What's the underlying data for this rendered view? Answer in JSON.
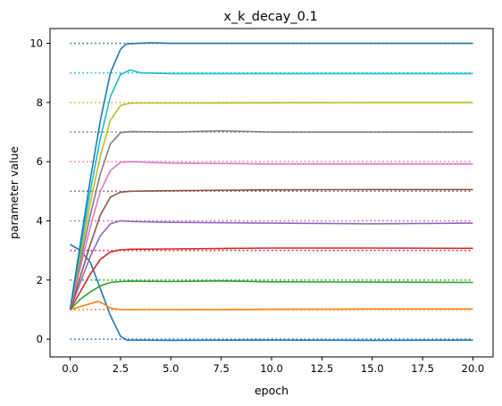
{
  "chart_data": {
    "type": "line",
    "title": "x_k_decay_0.1",
    "xlabel": "epoch",
    "ylabel": "parameter value",
    "xlim": [
      -1.0,
      21.0
    ],
    "ylim": [
      -0.6,
      10.5
    ],
    "xticks": [
      0.0,
      2.5,
      5.0,
      7.5,
      10.0,
      12.5,
      15.0,
      17.5,
      20.0
    ],
    "xtick_labels": [
      "0.0",
      "2.5",
      "5.0",
      "7.5",
      "10.0",
      "12.5",
      "15.0",
      "17.5",
      "20.0"
    ],
    "yticks": [
      0,
      2,
      4,
      6,
      8,
      10
    ],
    "ytick_labels": [
      "0",
      "2",
      "4",
      "6",
      "8",
      "10"
    ],
    "grid": false,
    "legend": "none",
    "series": [
      {
        "color": "#1f77b4",
        "target": 0,
        "points": [
          [
            0,
            3.2
          ],
          [
            0.5,
            3.0
          ],
          [
            1.0,
            2.6
          ],
          [
            1.5,
            1.7
          ],
          [
            2.0,
            0.8
          ],
          [
            2.5,
            0.1
          ],
          [
            2.8,
            -0.03
          ],
          [
            5,
            -0.04
          ],
          [
            10,
            -0.03
          ],
          [
            15,
            -0.04
          ],
          [
            20,
            -0.03
          ]
        ]
      },
      {
        "color": "#ff7f0e",
        "target": 1,
        "points": [
          [
            0,
            1.0
          ],
          [
            0.5,
            1.1
          ],
          [
            1.0,
            1.2
          ],
          [
            1.4,
            1.28
          ],
          [
            1.7,
            1.18
          ],
          [
            2.0,
            1.05
          ],
          [
            2.5,
            1.0
          ],
          [
            5,
            1.0
          ],
          [
            10,
            1.01
          ],
          [
            15,
            1.02
          ],
          [
            20,
            1.02
          ]
        ]
      },
      {
        "color": "#2ca02c",
        "target": 2,
        "points": [
          [
            0,
            1.0
          ],
          [
            0.5,
            1.35
          ],
          [
            1.0,
            1.6
          ],
          [
            1.5,
            1.8
          ],
          [
            2.0,
            1.92
          ],
          [
            2.5,
            1.95
          ],
          [
            3.0,
            1.96
          ],
          [
            5,
            1.95
          ],
          [
            7.5,
            1.97
          ],
          [
            10,
            1.94
          ],
          [
            15,
            1.93
          ],
          [
            20,
            1.92
          ]
        ]
      },
      {
        "color": "#d62728",
        "target": 3,
        "points": [
          [
            0,
            1.0
          ],
          [
            0.5,
            1.6
          ],
          [
            1.0,
            2.2
          ],
          [
            1.5,
            2.7
          ],
          [
            2.0,
            2.95
          ],
          [
            2.5,
            3.02
          ],
          [
            3.0,
            3.04
          ],
          [
            5,
            3.05
          ],
          [
            10,
            3.08
          ],
          [
            15,
            3.08
          ],
          [
            20,
            3.07
          ]
        ]
      },
      {
        "color": "#9467bd",
        "target": 4,
        "points": [
          [
            0,
            1.0
          ],
          [
            0.5,
            1.9
          ],
          [
            1.0,
            2.8
          ],
          [
            1.5,
            3.5
          ],
          [
            2.0,
            3.9
          ],
          [
            2.5,
            4.0
          ],
          [
            3.0,
            3.98
          ],
          [
            5,
            3.95
          ],
          [
            10,
            3.92
          ],
          [
            15,
            3.9
          ],
          [
            20,
            3.92
          ]
        ]
      },
      {
        "color": "#8c564b",
        "target": 5,
        "points": [
          [
            0,
            1.0
          ],
          [
            0.5,
            2.1
          ],
          [
            1.0,
            3.2
          ],
          [
            1.5,
            4.2
          ],
          [
            2.0,
            4.8
          ],
          [
            2.5,
            4.97
          ],
          [
            3.0,
            5.0
          ],
          [
            5,
            5.02
          ],
          [
            10,
            5.05
          ],
          [
            15,
            5.06
          ],
          [
            20,
            5.06
          ]
        ]
      },
      {
        "color": "#e377c2",
        "target": 6,
        "points": [
          [
            0,
            1.0
          ],
          [
            0.5,
            2.4
          ],
          [
            1.0,
            3.8
          ],
          [
            1.5,
            5.0
          ],
          [
            2.0,
            5.7
          ],
          [
            2.5,
            5.98
          ],
          [
            3.0,
            6.0
          ],
          [
            5,
            5.95
          ],
          [
            10,
            5.92
          ],
          [
            15,
            5.92
          ],
          [
            20,
            5.92
          ]
        ]
      },
      {
        "color": "#7f7f7f",
        "target": 7,
        "points": [
          [
            0,
            1.0
          ],
          [
            0.5,
            2.6
          ],
          [
            1.0,
            4.2
          ],
          [
            1.5,
            5.6
          ],
          [
            2.0,
            6.6
          ],
          [
            2.5,
            6.98
          ],
          [
            3.0,
            7.02
          ],
          [
            5,
            7.0
          ],
          [
            7.5,
            7.04
          ],
          [
            10,
            7.0
          ],
          [
            15,
            7.0
          ],
          [
            20,
            7.0
          ]
        ]
      },
      {
        "color": "#bcbd22",
        "target": 8,
        "points": [
          [
            0,
            1.0
          ],
          [
            0.5,
            2.8
          ],
          [
            1.0,
            4.6
          ],
          [
            1.5,
            6.2
          ],
          [
            2.0,
            7.4
          ],
          [
            2.5,
            7.9
          ],
          [
            3.0,
            7.98
          ],
          [
            5,
            7.98
          ],
          [
            10,
            7.99
          ],
          [
            15,
            8.0
          ],
          [
            20,
            8.0
          ]
        ]
      },
      {
        "color": "#17becf",
        "target": 9,
        "points": [
          [
            0,
            1.0
          ],
          [
            0.5,
            3.0
          ],
          [
            1.0,
            5.0
          ],
          [
            1.5,
            6.8
          ],
          [
            2.0,
            8.2
          ],
          [
            2.5,
            8.95
          ],
          [
            3.0,
            9.1
          ],
          [
            3.5,
            9.0
          ],
          [
            5,
            8.98
          ],
          [
            10,
            8.98
          ],
          [
            15,
            8.98
          ],
          [
            20,
            8.98
          ]
        ]
      },
      {
        "color": "#1f77b4",
        "target": 10,
        "points": [
          [
            0,
            1.0
          ],
          [
            0.5,
            3.2
          ],
          [
            1.0,
            5.4
          ],
          [
            1.5,
            7.4
          ],
          [
            2.0,
            9.0
          ],
          [
            2.5,
            9.8
          ],
          [
            2.8,
            9.98
          ],
          [
            4,
            10.02
          ],
          [
            5,
            10.0
          ],
          [
            10,
            10.0
          ],
          [
            15,
            10.0
          ],
          [
            20,
            10.0
          ]
        ]
      }
    ]
  }
}
